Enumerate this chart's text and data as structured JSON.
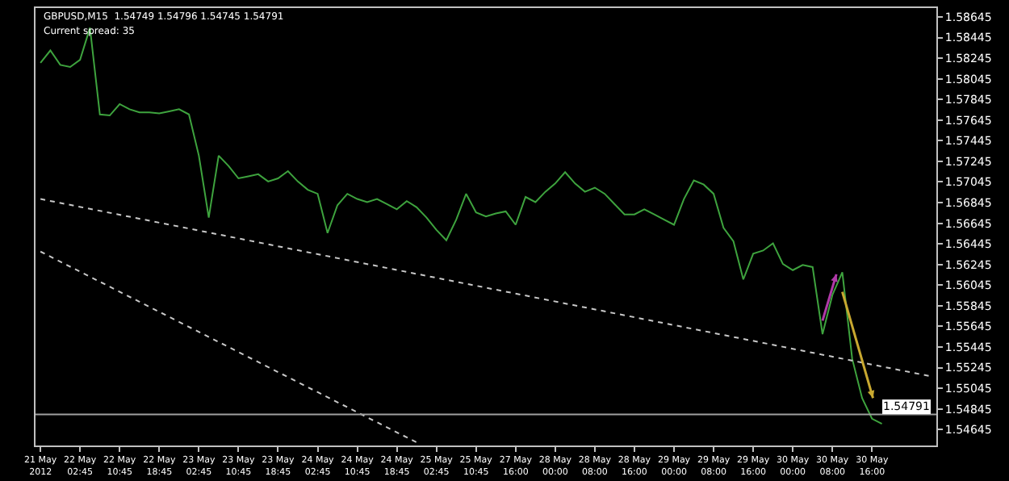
{
  "chart_data": {
    "type": "line",
    "title": "GBPUSD,M15  1.54749 1.54796 1.54745 1.54791",
    "subtitle": "Current spread: 35",
    "categories": [
      "21 May 2012",
      null,
      null,
      null,
      "22 May 02:45",
      null,
      null,
      null,
      "22 May 10:45",
      null,
      null,
      null,
      "22 May 18:45",
      null,
      null,
      null,
      "23 May 02:45",
      null,
      null,
      null,
      "23 May 10:45",
      null,
      null,
      null,
      "23 May 18:45",
      null,
      null,
      null,
      "24 May 02:45",
      null,
      null,
      null,
      "24 May 10:45",
      null,
      null,
      null,
      "24 May 18:45",
      null,
      null,
      null,
      "25 May 02:45",
      null,
      null,
      null,
      "25 May 10:45",
      null,
      null,
      null,
      "27 May 16:00",
      null,
      null,
      null,
      "28 May 00:00",
      null,
      null,
      null,
      "28 May 08:00",
      null,
      null,
      null,
      "28 May 16:00",
      null,
      null,
      null,
      "29 May 00:00",
      null,
      null,
      null,
      "29 May 08:00",
      null,
      null,
      null,
      "29 May 16:00",
      null,
      null,
      null,
      "30 May 00:00",
      null,
      null,
      null,
      "30 May 08:00",
      null,
      null,
      null,
      "30 May 16:00",
      null,
      null,
      null,
      null,
      null,
      null
    ],
    "series": [
      {
        "color": "#3ea33e",
        "values": [
          1.582,
          1.5832,
          1.5818,
          1.5816,
          1.5823,
          1.5854,
          1.577,
          1.5769,
          1.578,
          1.5775,
          1.5772,
          1.5772,
          1.5771,
          1.5773,
          1.5775,
          1.577,
          1.573,
          1.567,
          1.573,
          1.572,
          1.5708,
          1.571,
          1.5712,
          1.5705,
          1.5708,
          1.5715,
          1.5705,
          1.5697,
          1.5693,
          1.5655,
          1.5682,
          1.5693,
          1.5688,
          1.5685,
          1.5688,
          1.5683,
          1.5678,
          1.5686,
          1.568,
          1.567,
          1.5658,
          1.5648,
          1.5668,
          1.5693,
          1.5675,
          1.5671,
          1.5674,
          1.5676,
          1.5663,
          1.569,
          1.5685,
          1.5695,
          1.5703,
          1.5714,
          1.5703,
          1.5695,
          1.5699,
          1.5693,
          1.5683,
          1.5673,
          1.5673,
          1.5678,
          1.5673,
          1.5668,
          1.5663,
          1.5688,
          1.5706,
          1.5702,
          1.5693,
          1.566,
          1.5647,
          1.561,
          1.5635,
          1.5638,
          1.5645,
          1.5625,
          1.5619,
          1.5624,
          1.5622,
          1.5557,
          1.5595,
          1.5617,
          1.5533,
          1.5495,
          1.5475,
          1.547,
          null,
          null,
          null,
          null,
          null
        ]
      },
      {
        "type": "line",
        "color": "#c8c8c8",
        "line_style": "dotted",
        "values": [
          1.5688,
          null,
          null,
          null,
          null,
          null,
          null,
          null,
          null,
          null,
          null,
          null,
          null,
          null,
          null,
          null,
          null,
          null,
          null,
          null,
          null,
          null,
          null,
          null,
          null,
          null,
          null,
          null,
          null,
          null,
          null,
          null,
          null,
          null,
          null,
          null,
          null,
          null,
          null,
          null,
          null,
          null,
          null,
          null,
          null,
          null,
          null,
          null,
          null,
          null,
          null,
          null,
          null,
          null,
          null,
          null,
          null,
          null,
          null,
          null,
          null,
          null,
          null,
          null,
          null,
          null,
          null,
          null,
          null,
          null,
          null,
          null,
          null,
          null,
          null,
          null,
          null,
          null,
          null,
          null,
          null,
          null,
          null,
          null,
          null,
          null,
          null,
          null,
          null,
          null,
          1.5516
        ]
      },
      {
        "type": "line",
        "color": "#c8c8c8",
        "line_style": "dotted",
        "values": [
          1.5637,
          null,
          null,
          null,
          null,
          null,
          null,
          null,
          null,
          null,
          null,
          null,
          null,
          null,
          null,
          null,
          null,
          null,
          null,
          null,
          null,
          null,
          null,
          null,
          null,
          null,
          null,
          null,
          null,
          null,
          null,
          null,
          null,
          null,
          null,
          null,
          null,
          null,
          1.5452,
          null,
          null,
          null,
          null,
          null,
          null,
          null,
          null,
          null,
          null,
          null,
          null,
          null,
          null,
          null,
          null,
          null,
          null,
          null,
          null,
          null,
          null,
          null,
          null,
          null,
          null,
          null,
          null,
          null,
          null,
          null,
          null,
          null,
          null,
          null,
          null,
          null,
          null,
          null,
          null,
          null,
          null,
          null,
          null,
          null,
          null,
          null,
          null,
          null,
          null,
          null,
          null
        ]
      }
    ],
    "ylim": [
      1.5449,
      1.58731
    ],
    "yticks": [
      1.58645,
      1.58445,
      1.58245,
      1.58045,
      1.57845,
      1.57645,
      1.57445,
      1.57245,
      1.57045,
      1.56845,
      1.56645,
      1.56445,
      1.56245,
      1.56045,
      1.55845,
      1.55645,
      1.55445,
      1.55245,
      1.55045,
      1.54845,
      1.54645
    ],
    "ref_lines": [
      {
        "axis": "y",
        "value": 1.54791,
        "label": "1.54791",
        "color": "#a0a0a0"
      }
    ],
    "grid": false
  }
}
